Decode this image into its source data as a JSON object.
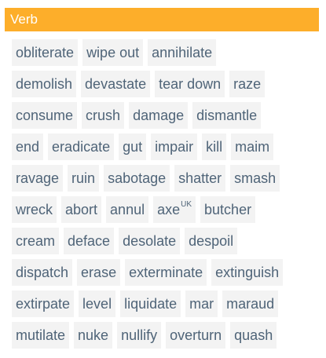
{
  "section": {
    "title": "Verb",
    "header_color": "#FDAE2A",
    "chip_text_color": "#4F6478",
    "chip_bg_color": "#F3F3F3"
  },
  "rows": [
    [
      {
        "word": "obliterate"
      },
      {
        "word": "wipe out"
      },
      {
        "word": "annihilate"
      }
    ],
    [
      {
        "word": "demolish"
      },
      {
        "word": "devastate"
      },
      {
        "word": "tear down"
      },
      {
        "word": "raze"
      }
    ],
    [
      {
        "word": "consume"
      },
      {
        "word": "crush"
      },
      {
        "word": "damage"
      },
      {
        "word": "dismantle"
      }
    ],
    [
      {
        "word": "end"
      },
      {
        "word": "eradicate"
      },
      {
        "word": "gut"
      },
      {
        "word": "impair"
      },
      {
        "word": "kill"
      },
      {
        "word": "maim"
      }
    ],
    [
      {
        "word": "ravage"
      },
      {
        "word": "ruin"
      },
      {
        "word": "sabotage"
      },
      {
        "word": "shatter"
      },
      {
        "word": "smash"
      }
    ],
    [
      {
        "word": "wreck"
      },
      {
        "word": "abort"
      },
      {
        "word": "annul"
      },
      {
        "word": "axe",
        "sup": "UK"
      },
      {
        "word": "butcher"
      }
    ],
    [
      {
        "word": "cream"
      },
      {
        "word": "deface"
      },
      {
        "word": "desolate"
      },
      {
        "word": "despoil"
      }
    ],
    [
      {
        "word": "dispatch"
      },
      {
        "word": "erase"
      },
      {
        "word": "exterminate"
      },
      {
        "word": "extinguish"
      }
    ],
    [
      {
        "word": "extirpate"
      },
      {
        "word": "level"
      },
      {
        "word": "liquidate"
      },
      {
        "word": "mar"
      },
      {
        "word": "maraud"
      }
    ],
    [
      {
        "word": "mutilate"
      },
      {
        "word": "nuke"
      },
      {
        "word": "nullify"
      },
      {
        "word": "overturn"
      },
      {
        "word": "quash"
      }
    ]
  ]
}
